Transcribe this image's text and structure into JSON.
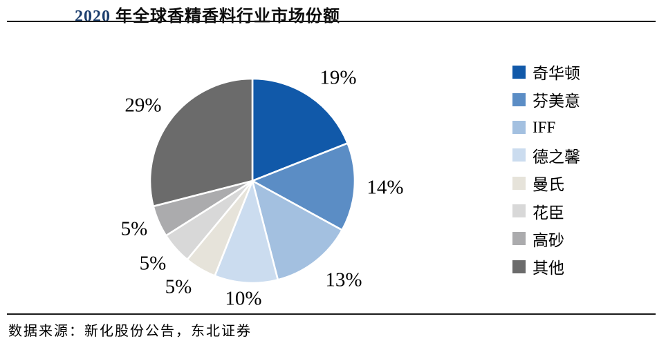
{
  "title": {
    "year": "2020",
    "rest": " 年全球香精香料行业市场份额",
    "full": "2020 年全球香精香料行业市场份额"
  },
  "source": "数据来源：新化股份公告，东北证券",
  "chart_data": {
    "type": "pie",
    "title": "2020 年全球香精香料行业市场份额",
    "categories": [
      "奇华顿",
      "芬美意",
      "IFF",
      "德之馨",
      "曼氏",
      "花臣",
      "高砂",
      "其他"
    ],
    "values": [
      19,
      14,
      13,
      10,
      5,
      5,
      5,
      29
    ],
    "unit": "%",
    "data_labels": [
      "19%",
      "14%",
      "13%",
      "10%",
      "5%",
      "5%",
      "5%",
      "29%"
    ],
    "colors": [
      "#1159A9",
      "#5B8DC5",
      "#A3C0E0",
      "#CBDCEF",
      "#E6E3DA",
      "#D8D8D8",
      "#ABABAD",
      "#6B6B6B"
    ],
    "start_angle_deg": 0,
    "direction": "clockwise",
    "slice_border_color": "#FFFFFF",
    "legend_position": "right",
    "legend_entries": [
      "奇华顿",
      "芬美意",
      "IFF",
      "德之馨",
      "曼氏",
      "花臣",
      "高砂",
      "其他"
    ]
  }
}
